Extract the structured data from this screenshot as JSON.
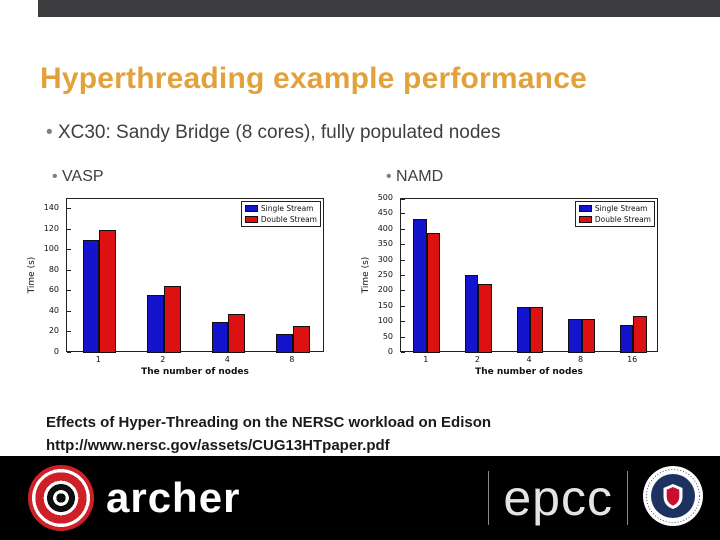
{
  "slide": {
    "title": "Hyperthreading example performance",
    "bullet1": "XC30: Sandy Bridge (8 cores), fully populated nodes",
    "left_bullet": "VASP",
    "right_bullet": "NAMD",
    "caption_line1": "Effects of Hyper-Threading on the NERSC workload on Edison",
    "caption_line2": "http://www.nersc.gov/assets/CUG13HTpaper.pdf"
  },
  "footer": {
    "archer_label": "archer",
    "epcc_label": "epcc"
  },
  "colors": {
    "title_accent": "#e2a23b",
    "single_stream": "#1414cc",
    "double_stream": "#dd1111",
    "footer_bg": "#000000",
    "top_bar": "#3d3d40"
  },
  "chart_data": [
    {
      "type": "bar",
      "name": "VASP",
      "categories": [
        "1",
        "2",
        "4",
        "8"
      ],
      "series": [
        {
          "name": "Single Stream",
          "color": "#1414cc",
          "values": [
            110,
            57,
            30,
            19
          ]
        },
        {
          "name": "Double Stream",
          "color": "#dd1111",
          "values": [
            120,
            65,
            38,
            26
          ]
        }
      ],
      "xlabel": "The number of nodes",
      "ylabel": "Time (s)",
      "ylim": [
        0,
        150
      ],
      "yticks": [
        0,
        20,
        40,
        60,
        80,
        100,
        120,
        140
      ],
      "grid": false,
      "legend_position": "top-right"
    },
    {
      "type": "bar",
      "name": "NAMD",
      "categories": [
        "1",
        "2",
        "4",
        "8",
        "16"
      ],
      "series": [
        {
          "name": "Single Stream",
          "color": "#1414cc",
          "values": [
            435,
            255,
            150,
            110,
            90
          ]
        },
        {
          "name": "Double Stream",
          "color": "#dd1111",
          "values": [
            390,
            225,
            148,
            112,
            120
          ]
        }
      ],
      "xlabel": "The number of nodes",
      "ylabel": "Time (s)",
      "ylim": [
        0,
        500
      ],
      "yticks": [
        0,
        50,
        100,
        150,
        200,
        250,
        300,
        350,
        400,
        450,
        500
      ],
      "grid": false,
      "legend_position": "top-right"
    }
  ]
}
